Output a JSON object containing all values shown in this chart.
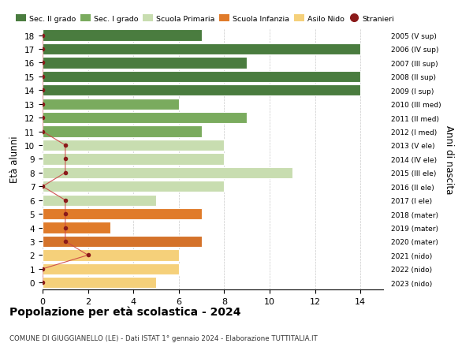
{
  "ages": [
    18,
    17,
    16,
    15,
    14,
    13,
    12,
    11,
    10,
    9,
    8,
    7,
    6,
    5,
    4,
    3,
    2,
    1,
    0
  ],
  "years": [
    "2005 (V sup)",
    "2006 (IV sup)",
    "2007 (III sup)",
    "2008 (II sup)",
    "2009 (I sup)",
    "2010 (III med)",
    "2011 (II med)",
    "2012 (I med)",
    "2013 (V ele)",
    "2014 (IV ele)",
    "2015 (III ele)",
    "2016 (II ele)",
    "2017 (I ele)",
    "2018 (mater)",
    "2019 (mater)",
    "2020 (mater)",
    "2021 (nido)",
    "2022 (nido)",
    "2023 (nido)"
  ],
  "values": [
    7,
    14,
    9,
    14,
    14,
    6,
    9,
    7,
    8,
    8,
    11,
    8,
    5,
    7,
    3,
    7,
    6,
    6,
    5
  ],
  "stranieri": [
    0,
    0,
    0,
    0,
    0,
    0,
    0,
    0,
    1,
    1,
    1,
    0,
    1,
    1,
    1,
    1,
    2,
    0,
    0
  ],
  "bar_colors_by_age": {
    "18": "#4a7c3f",
    "17": "#4a7c3f",
    "16": "#4a7c3f",
    "15": "#4a7c3f",
    "14": "#4a7c3f",
    "13": "#7aab5e",
    "12": "#7aab5e",
    "11": "#7aab5e",
    "10": "#c8ddb0",
    "9": "#c8ddb0",
    "8": "#c8ddb0",
    "7": "#c8ddb0",
    "6": "#c8ddb0",
    "5": "#e07b2a",
    "4": "#e07b2a",
    "3": "#d4722a",
    "2": "#f5d07a",
    "1": "#f5d07a",
    "0": "#f5d07a"
  },
  "stranieri_dot_color": "#8b1a1a",
  "stranieri_line_color": "#cc4444",
  "title": "Popolazione per età scolastica - 2024",
  "subtitle": "COMUNE DI GIUGGIANELLO (LE) - Dati ISTAT 1° gennaio 2024 - Elaborazione TUTTITALIA.IT",
  "ylabel": "Età alunni",
  "ylabel_right": "Anni di nascita",
  "xlim": [
    0,
    15
  ],
  "xticks": [
    0,
    2,
    4,
    6,
    8,
    10,
    12,
    14
  ],
  "legend_labels": [
    "Sec. II grado",
    "Sec. I grado",
    "Scuola Primaria",
    "Scuola Infanzia",
    "Asilo Nido",
    "Stranieri"
  ],
  "legend_colors": [
    "#4a7c3f",
    "#7aab5e",
    "#c8ddb0",
    "#e07b2a",
    "#f5d07a",
    "#8b1a1a"
  ]
}
